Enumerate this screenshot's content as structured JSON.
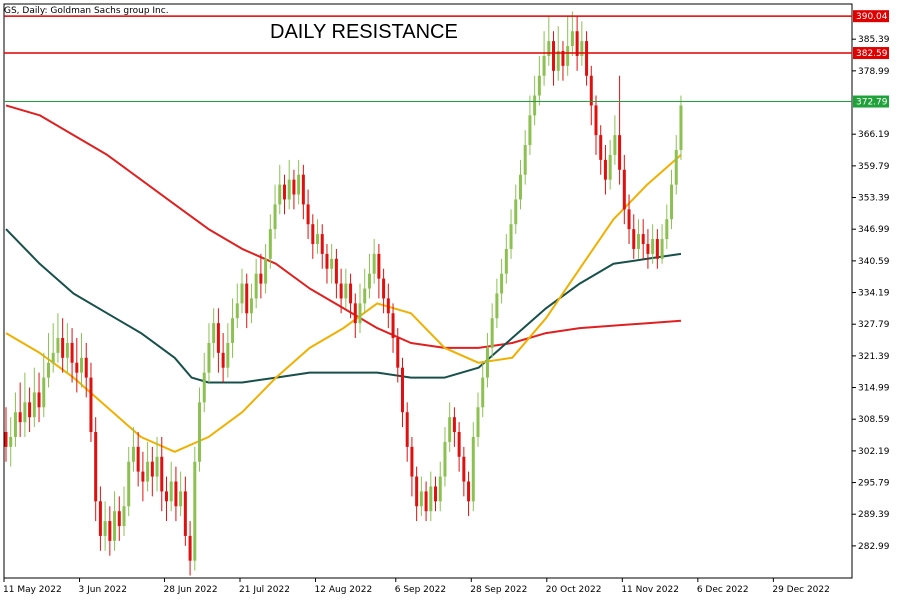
{
  "symbol_label": "GS, Daily:  Goldman Sachs group Inc.",
  "headline": "DAILY RESISTANCE",
  "chart_data": {
    "type": "candlestick",
    "title": "DAILY RESISTANCE",
    "symbol": "GS, Daily:  Goldman Sachs group Inc.",
    "ylim": [
      276.5,
      392.5
    ],
    "y_ticks": [
      "385.39",
      "378.99",
      "366.19",
      "359.79",
      "353.39",
      "346.99",
      "340.59",
      "334.19",
      "327.79",
      "321.39",
      "314.99",
      "308.59",
      "302.19",
      "295.79",
      "289.39",
      "282.99"
    ],
    "x_ticks": [
      "11 May 2022",
      "3 Jun 2022",
      "28 Jun 2022",
      "21 Jul 2022",
      "12 Aug 2022",
      "6 Sep 2022",
      "28 Sep 2022",
      "20 Oct 2022",
      "11 Nov 2022",
      "6 Dec 2022",
      "29 Dec 2022"
    ],
    "levels": [
      {
        "label": "390.04",
        "value": 390.04,
        "color": "#e00000"
      },
      {
        "label": "382.59",
        "value": 382.59,
        "color": "#e00000"
      },
      {
        "label": "372.79",
        "value": 372.79,
        "color": "#1fa23a"
      }
    ],
    "series": [
      {
        "values": [
          [
            306,
            303,
            311,
            300
          ],
          [
            303,
            305,
            309,
            299
          ],
          [
            305,
            310,
            314,
            303
          ],
          [
            310,
            308,
            316,
            305
          ],
          [
            308,
            312,
            318,
            305
          ],
          [
            312,
            309,
            315,
            306
          ],
          [
            309,
            314,
            319,
            307
          ],
          [
            314,
            311,
            318,
            308
          ],
          [
            311,
            317,
            322,
            309
          ],
          [
            317,
            320,
            326,
            315
          ],
          [
            320,
            322,
            328,
            318
          ],
          [
            322,
            325,
            330,
            320
          ],
          [
            325,
            321,
            329,
            318
          ],
          [
            321,
            324,
            328,
            318
          ],
          [
            324,
            320,
            327,
            316
          ],
          [
            320,
            318,
            325,
            314
          ],
          [
            318,
            321,
            326,
            315
          ],
          [
            321,
            317,
            324,
            313
          ],
          [
            317,
            306,
            320,
            304
          ],
          [
            306,
            292,
            309,
            288
          ],
          [
            292,
            285,
            295,
            282
          ],
          [
            285,
            288,
            292,
            282
          ],
          [
            288,
            284,
            291,
            281
          ],
          [
            284,
            290,
            294,
            282
          ],
          [
            290,
            287,
            293,
            284
          ],
          [
            287,
            291,
            295,
            285
          ],
          [
            291,
            300,
            303,
            289
          ],
          [
            300,
            303,
            307,
            298
          ],
          [
            303,
            298,
            306,
            295
          ],
          [
            298,
            296,
            302,
            292
          ],
          [
            296,
            300,
            304,
            294
          ],
          [
            300,
            297,
            303,
            293
          ],
          [
            297,
            301,
            305,
            294
          ],
          [
            301,
            294,
            305,
            290
          ],
          [
            294,
            292,
            297,
            288
          ],
          [
            292,
            296,
            300,
            290
          ],
          [
            296,
            291,
            299,
            288
          ],
          [
            291,
            294,
            298,
            289
          ],
          [
            294,
            285,
            297,
            283
          ],
          [
            285,
            280,
            288,
            277
          ],
          [
            280,
            300,
            303,
            278
          ],
          [
            300,
            312,
            315,
            298
          ],
          [
            312,
            318,
            322,
            310
          ],
          [
            318,
            324,
            328,
            316
          ],
          [
            324,
            328,
            331,
            321
          ],
          [
            328,
            322,
            331,
            318
          ],
          [
            322,
            319,
            326,
            316
          ],
          [
            319,
            324,
            328,
            317
          ],
          [
            324,
            329,
            333,
            321
          ],
          [
            329,
            332,
            336,
            327
          ],
          [
            332,
            336,
            339,
            330
          ],
          [
            336,
            330,
            338,
            327
          ],
          [
            330,
            333,
            336,
            328
          ],
          [
            333,
            338,
            341,
            331
          ],
          [
            338,
            336,
            342,
            333
          ],
          [
            336,
            341,
            344,
            334
          ],
          [
            341,
            347,
            350,
            339
          ],
          [
            347,
            352,
            356,
            345
          ],
          [
            352,
            356,
            360,
            350
          ],
          [
            356,
            353,
            358,
            350
          ],
          [
            353,
            357,
            361,
            351
          ],
          [
            357,
            354,
            359,
            351
          ],
          [
            354,
            358,
            361,
            352
          ],
          [
            358,
            352,
            360,
            349
          ],
          [
            352,
            348,
            355,
            345
          ],
          [
            348,
            344,
            350,
            341
          ],
          [
            344,
            346,
            349,
            342
          ],
          [
            346,
            342,
            348,
            339
          ],
          [
            342,
            339,
            344,
            336
          ],
          [
            339,
            341,
            344,
            336
          ],
          [
            341,
            336,
            343,
            333
          ],
          [
            336,
            333,
            339,
            330
          ],
          [
            333,
            336,
            339,
            331
          ],
          [
            336,
            332,
            338,
            329
          ],
          [
            332,
            328,
            334,
            325
          ],
          [
            328,
            332,
            336,
            326
          ],
          [
            332,
            335,
            339,
            330
          ],
          [
            335,
            338,
            342,
            333
          ],
          [
            338,
            342,
            345,
            336
          ],
          [
            342,
            337,
            344,
            333
          ],
          [
            337,
            333,
            339,
            330
          ],
          [
            333,
            330,
            336,
            327
          ],
          [
            330,
            325,
            332,
            322
          ],
          [
            325,
            319,
            327,
            316
          ],
          [
            319,
            310,
            321,
            307
          ],
          [
            310,
            303,
            312,
            300
          ],
          [
            303,
            297,
            305,
            293
          ],
          [
            297,
            291,
            299,
            288
          ],
          [
            291,
            294,
            297,
            289
          ],
          [
            294,
            290,
            296,
            288
          ],
          [
            290,
            295,
            298,
            288
          ],
          [
            295,
            292,
            297,
            290
          ],
          [
            292,
            297,
            300,
            290
          ],
          [
            297,
            304,
            307,
            295
          ],
          [
            304,
            309,
            312,
            302
          ],
          [
            309,
            306,
            311,
            303
          ],
          [
            306,
            301,
            308,
            298
          ],
          [
            301,
            296,
            303,
            293
          ],
          [
            296,
            292,
            298,
            289
          ],
          [
            292,
            305,
            308,
            290
          ],
          [
            305,
            311,
            314,
            303
          ],
          [
            311,
            317,
            320,
            309
          ],
          [
            317,
            323,
            326,
            315
          ],
          [
            323,
            329,
            332,
            321
          ],
          [
            329,
            334,
            337,
            327
          ],
          [
            334,
            338,
            341,
            332
          ],
          [
            338,
            343,
            346,
            336
          ],
          [
            343,
            348,
            351,
            341
          ],
          [
            348,
            353,
            356,
            346
          ],
          [
            353,
            358,
            361,
            351
          ],
          [
            358,
            364,
            367,
            356
          ],
          [
            364,
            370,
            374,
            362
          ],
          [
            370,
            374,
            378,
            368
          ],
          [
            374,
            378,
            382,
            372
          ],
          [
            378,
            382,
            387,
            376
          ],
          [
            382,
            385,
            390,
            380
          ],
          [
            385,
            379,
            387,
            376
          ],
          [
            379,
            383,
            388,
            377
          ],
          [
            383,
            380,
            385,
            377
          ],
          [
            380,
            384,
            390,
            378
          ],
          [
            384,
            387,
            391,
            382
          ],
          [
            387,
            382,
            390,
            379
          ],
          [
            382,
            385,
            389,
            380
          ],
          [
            385,
            378,
            387,
            376
          ],
          [
            378,
            372,
            380,
            368
          ],
          [
            372,
            366,
            374,
            362
          ],
          [
            366,
            361,
            368,
            358
          ],
          [
            361,
            357,
            364,
            354
          ],
          [
            357,
            362,
            365,
            355
          ],
          [
            362,
            366,
            370,
            360
          ],
          [
            366,
            359,
            378,
            356
          ],
          [
            359,
            351,
            362,
            348
          ],
          [
            351,
            347,
            354,
            344
          ],
          [
            347,
            343,
            350,
            341
          ],
          [
            343,
            346,
            349,
            341
          ],
          [
            346,
            344,
            349,
            341
          ],
          [
            344,
            342,
            347,
            339
          ],
          [
            342,
            345,
            348,
            340
          ],
          [
            345,
            341,
            347,
            339
          ],
          [
            341,
            345,
            348,
            340
          ],
          [
            345,
            349,
            352,
            343
          ],
          [
            349,
            356,
            359,
            347
          ],
          [
            356,
            363,
            366,
            354
          ],
          [
            363,
            372,
            374,
            361
          ]
        ]
      }
    ],
    "moving_averages": [
      {
        "color": "#e02020",
        "values": [
          [
            0,
            372
          ],
          [
            20,
            370
          ],
          [
            40,
            366
          ],
          [
            60,
            362
          ],
          [
            80,
            357
          ],
          [
            100,
            352
          ],
          [
            120,
            347
          ],
          [
            140,
            343
          ],
          [
            160,
            340
          ],
          [
            180,
            335
          ],
          [
            200,
            331
          ],
          [
            220,
            327
          ],
          [
            240,
            324
          ],
          [
            260,
            323
          ],
          [
            280,
            323
          ],
          [
            300,
            324
          ],
          [
            320,
            326
          ],
          [
            340,
            327
          ],
          [
            360,
            327.5
          ],
          [
            380,
            328
          ],
          [
            400,
            328.5
          ]
        ]
      },
      {
        "color": "#17504a",
        "values": [
          [
            0,
            347
          ],
          [
            20,
            340
          ],
          [
            40,
            334
          ],
          [
            60,
            330
          ],
          [
            80,
            326
          ],
          [
            100,
            321
          ],
          [
            110,
            317
          ],
          [
            120,
            316
          ],
          [
            140,
            316
          ],
          [
            160,
            317
          ],
          [
            180,
            318
          ],
          [
            200,
            318
          ],
          [
            220,
            318
          ],
          [
            240,
            317
          ],
          [
            260,
            317
          ],
          [
            280,
            319
          ],
          [
            300,
            325
          ],
          [
            320,
            331
          ],
          [
            340,
            336
          ],
          [
            360,
            340
          ],
          [
            380,
            341
          ],
          [
            400,
            342
          ]
        ]
      },
      {
        "color": "#f0b000",
        "values": [
          [
            0,
            326
          ],
          [
            20,
            322
          ],
          [
            40,
            317
          ],
          [
            60,
            311
          ],
          [
            80,
            305
          ],
          [
            100,
            302
          ],
          [
            120,
            305
          ],
          [
            140,
            310
          ],
          [
            160,
            317
          ],
          [
            180,
            323
          ],
          [
            200,
            327
          ],
          [
            220,
            332
          ],
          [
            240,
            330
          ],
          [
            260,
            323
          ],
          [
            280,
            320
          ],
          [
            300,
            321
          ],
          [
            320,
            329
          ],
          [
            340,
            339
          ],
          [
            360,
            349
          ],
          [
            380,
            356
          ],
          [
            400,
            362
          ]
        ]
      }
    ]
  }
}
